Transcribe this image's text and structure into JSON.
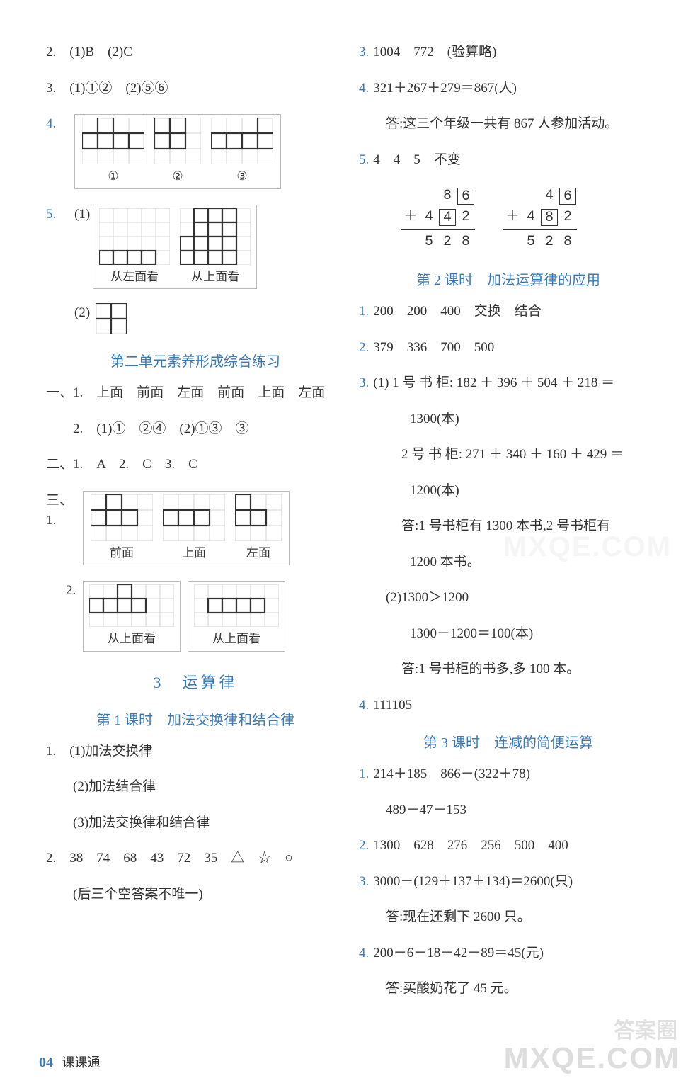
{
  "left": {
    "q2": "2.　(1)B　(2)C",
    "q3": "3.　(1)①②　(2)⑤⑥",
    "q4": {
      "prefix": "4.",
      "labels": [
        "①",
        "②",
        "③"
      ]
    },
    "q5": {
      "prefix": "5.",
      "sub1": "(1)",
      "labels": [
        "从左面看",
        "从上面看"
      ],
      "sub2": "(2)"
    },
    "heading_unit2": "第二单元素养形成综合练习",
    "p1_1": "一、1.　上面　前面　左面　前面　上面　左面",
    "p1_2": "2.　(1)①　②④　(2)①③　③",
    "p2": "二、1.　A　2.　C　3.　C",
    "p3": {
      "prefix": "三、1.",
      "labels1": [
        "前面",
        "上面",
        "左面"
      ],
      "prefix2": "2.",
      "labels2": [
        "从上面看",
        "从上面看"
      ]
    },
    "section3": "3　运算律",
    "lesson1": "第 1 课时　加法交换律和结合律",
    "l1_q1_1": "1.　(1)加法交换律",
    "l1_q1_2": "(2)加法结合律",
    "l1_q1_3": "(3)加法交换律和结合律",
    "l1_q2": "2.　38　74　68　43　72　35　△　☆　○",
    "l1_q2_note": "(后三个空答案不唯一)"
  },
  "right": {
    "q3": "3.　1004　772　(验算略)",
    "q4": "4.　321＋267＋279＝867(人)",
    "q4_ans": "答:这三个年级一共有 867 人参加活动。",
    "q5": "5.　4　4　5　不变",
    "vadd": [
      {
        "r1": [
          " ",
          "8",
          "6b"
        ],
        "r2": [
          "+",
          "4",
          "4b",
          "2"
        ],
        "sum": [
          "5",
          "2",
          "8"
        ]
      },
      {
        "r1": [
          " ",
          "4",
          "6b"
        ],
        "r2": [
          "+",
          "4",
          "8b",
          "2"
        ],
        "sum": [
          "5",
          "2",
          "8"
        ]
      }
    ],
    "lesson2": "第 2 课时　加法运算律的应用",
    "l2_q1": "1.　200　200　400　交换　结合",
    "l2_q2": "2.　379　336　700　500",
    "l2_q3_1": "3.　(1) 1 号 书 柜: 182 ＋ 396 ＋ 504 ＋ 218 ＝",
    "l2_q3_1b": "1300(本)",
    "l2_q3_2": "2 号 书 柜: 271 ＋ 340 ＋ 160 ＋ 429 ＝",
    "l2_q3_2b": "1200(本)",
    "l2_q3_ans": "答:1 号书柜有 1300 本书,2 号书柜有",
    "l2_q3_ans2": "1200 本书。",
    "l2_q3_p2": "(2)1300＞1200",
    "l2_q3_p2b": "1300－1200＝100(本)",
    "l2_q3_p2ans": "答:1 号书柜的书多,多 100 本。",
    "l2_q4": "4.　111105",
    "lesson3": "第 3 课时　连减的简便运算",
    "l3_q1": "1.　214＋185　866－(322＋78)",
    "l3_q1b": "489－47－153",
    "l3_q2": "2.　1300　628　276　256　500　400",
    "l3_q3": "3.　3000－(129＋137＋134)＝2600(只)",
    "l3_q3ans": "答:现在还剩下 2600 只。",
    "l3_q4": "4.　200－6－18－42－89＝45(元)",
    "l3_q4ans": "答:买酸奶花了 45 元。"
  },
  "footer": {
    "page": "04",
    "label": "课课通"
  },
  "watermark": {
    "en": "MXQE.COM",
    "cn": "答案圈"
  },
  "grid": {
    "cell": 18,
    "stroke_light": "#c8c8c8",
    "stroke_dark": "#333333",
    "stroke_w_light": 0.8,
    "stroke_w_dark": 2.2
  },
  "shapes": {
    "q4": [
      {
        "cols": 4,
        "rows": 3,
        "cells": [
          [
            1,
            0
          ],
          [
            0,
            1
          ],
          [
            1,
            1
          ],
          [
            2,
            1
          ],
          [
            3,
            1
          ]
        ]
      },
      {
        "cols": 3,
        "rows": 3,
        "cells": [
          [
            0,
            0
          ],
          [
            1,
            0
          ],
          [
            0,
            1
          ],
          [
            1,
            1
          ]
        ]
      },
      {
        "cols": 4,
        "rows": 3,
        "cells": [
          [
            3,
            0
          ],
          [
            0,
            1
          ],
          [
            1,
            1
          ],
          [
            2,
            1
          ],
          [
            3,
            1
          ]
        ]
      }
    ],
    "q5_1": [
      {
        "cols": 5,
        "rows": 4,
        "cells": [
          [
            0,
            3
          ],
          [
            1,
            3
          ],
          [
            2,
            3
          ],
          [
            3,
            3
          ]
        ]
      },
      {
        "cols": 5,
        "rows": 4,
        "cells": [
          [
            1,
            0
          ],
          [
            2,
            0
          ],
          [
            3,
            0
          ],
          [
            1,
            1
          ],
          [
            2,
            1
          ],
          [
            3,
            1
          ],
          [
            0,
            2
          ],
          [
            1,
            2
          ],
          [
            2,
            2
          ],
          [
            3,
            2
          ],
          [
            0,
            3
          ],
          [
            1,
            3
          ],
          [
            2,
            3
          ],
          [
            3,
            3
          ]
        ]
      }
    ],
    "q5_2": {
      "cols": 2,
      "rows": 2,
      "cells": [
        [
          0,
          0
        ],
        [
          1,
          0
        ],
        [
          0,
          1
        ],
        [
          1,
          1
        ]
      ]
    },
    "p3_1": [
      {
        "cols": 4,
        "rows": 3,
        "cells": [
          [
            1,
            0
          ],
          [
            0,
            1
          ],
          [
            1,
            1
          ],
          [
            2,
            1
          ]
        ]
      },
      {
        "cols": 4,
        "rows": 3,
        "cells": [
          [
            0,
            1
          ],
          [
            1,
            1
          ],
          [
            2,
            1
          ]
        ]
      },
      {
        "cols": 3,
        "rows": 3,
        "cells": [
          [
            0,
            0
          ],
          [
            0,
            1
          ],
          [
            1,
            1
          ]
        ]
      }
    ],
    "p3_2": [
      {
        "cols": 6,
        "rows": 3,
        "cells": [
          [
            2,
            0
          ],
          [
            0,
            1
          ],
          [
            1,
            1
          ],
          [
            2,
            1
          ],
          [
            3,
            1
          ]
        ]
      },
      {
        "cols": 6,
        "rows": 3,
        "cells": [
          [
            1,
            1
          ],
          [
            2,
            1
          ],
          [
            3,
            1
          ],
          [
            4,
            1
          ]
        ]
      }
    ]
  }
}
